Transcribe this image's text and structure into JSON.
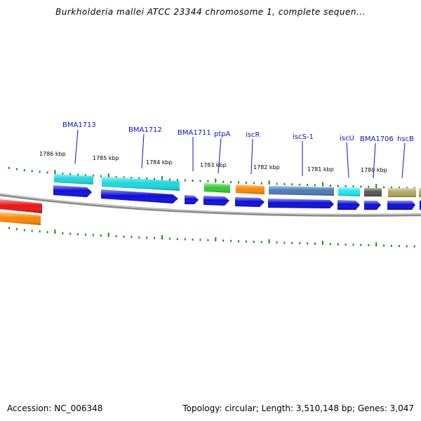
{
  "title": "Burkholderia mallei ATCC 23344 chromosome 1, complete sequen...",
  "footer": {
    "accession": "Accession: NC_006348",
    "topology": "Topology: circular; Length: 3,510,148 bp; Genes: 3,047"
  },
  "colors": {
    "gene_label": "#1010c8",
    "tick": "#1a8a1a",
    "backbone": "#8a8a8a",
    "cds": "#0b0be0"
  },
  "kbp_labels": [
    "1786 kbp",
    "1785 kbp",
    "1784 kbp",
    "1783 kbp",
    "1782 kbp",
    "1781 kbp",
    "1780 kbp"
  ],
  "genes": [
    {
      "label": "BMA1713",
      "color": "#19d8e0"
    },
    {
      "label": "BMA1712",
      "color": "#19d8e0"
    },
    {
      "label": "BMA1711",
      "color": "#0b0be0"
    },
    {
      "label": "ptpA",
      "color": "#33cc33"
    },
    {
      "label": "iscR",
      "color": "#ff8800"
    },
    {
      "label": "iscS-1",
      "color": "#4a7ab5"
    },
    {
      "label": "iscU",
      "color": "#19e8f0"
    },
    {
      "label": "BMA1706",
      "color": "#555555"
    },
    {
      "label": "hscB",
      "color": "#b0a860"
    }
  ],
  "partial_features": [
    {
      "color": "#ee1111"
    },
    {
      "color": "#ff8800"
    }
  ]
}
